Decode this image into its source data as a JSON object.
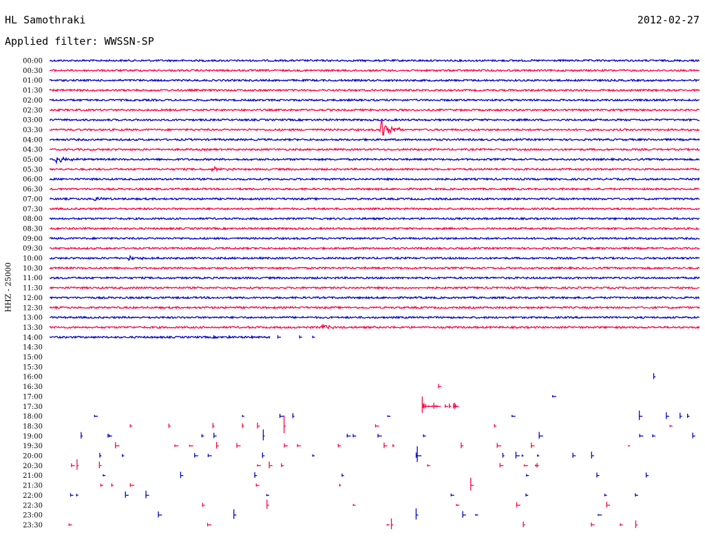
{
  "header": {
    "station": "HL Samothraki",
    "date": "2012-02-27",
    "filter_label": "Applied filter: WWSSN-SP",
    "channel_label": "HHZ - 25000"
  },
  "colors": {
    "even_rows": "#0000cc",
    "odd_rows": "#ff0040",
    "text": "#000000"
  },
  "chart_data": {
    "type": "line",
    "title": "",
    "xlabel": "",
    "ylabel": "HHZ - 25000",
    "row_labels": [
      "00:00",
      "00:30",
      "01:00",
      "01:30",
      "02:00",
      "02:30",
      "03:00",
      "03:30",
      "04:00",
      "04:30",
      "05:00",
      "05:30",
      "06:00",
      "06:30",
      "07:00",
      "07:30",
      "08:00",
      "08:30",
      "09:00",
      "09:30",
      "10:00",
      "10:30",
      "11:00",
      "11:30",
      "12:00",
      "12:30",
      "13:00",
      "13:30",
      "14:00",
      "14:30",
      "15:00",
      "15:30",
      "16:00",
      "16:30",
      "17:00",
      "17:30",
      "18:00",
      "18:30",
      "19:00",
      "19:30",
      "20:00",
      "20:30",
      "21:00",
      "21:30",
      "22:00",
      "22:30",
      "23:00",
      "23:30"
    ],
    "continuous_rows": 28,
    "partial_row": {
      "label": "14:00",
      "end_fraction": 0.34
    },
    "events": [
      {
        "row": "03:30",
        "x_fraction": 0.51,
        "amplitude": "large"
      },
      {
        "row": "05:00",
        "x_fraction": 0.01,
        "amplitude": "medium"
      },
      {
        "row": "05:30",
        "x_fraction": 0.25,
        "amplitude": "small"
      },
      {
        "row": "07:00",
        "x_fraction": 0.07,
        "amplitude": "small"
      },
      {
        "row": "10:00",
        "x_fraction": 0.12,
        "amplitude": "small"
      },
      {
        "row": "13:30",
        "x_fraction": 0.42,
        "amplitude": "small"
      }
    ],
    "grid": false,
    "legend": "none"
  }
}
